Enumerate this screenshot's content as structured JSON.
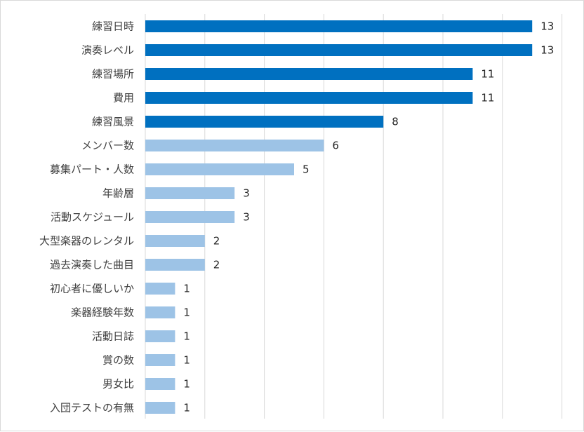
{
  "chart_data": {
    "type": "bar",
    "orientation": "horizontal",
    "categories": [
      "練習日時",
      "演奏レベル",
      "練習場所",
      "費用",
      "練習風景",
      "メンバー数",
      "募集パート・人数",
      "年齢層",
      "活動スケジュール",
      "大型楽器のレンタル",
      "過去演奏した曲目",
      "初心者に優しいか",
      "楽器経験年数",
      "活動日誌",
      "賞の数",
      "男女比",
      "入団テストの有無"
    ],
    "values": [
      13,
      13,
      11,
      11,
      8,
      6,
      5,
      3,
      3,
      2,
      2,
      1,
      1,
      1,
      1,
      1,
      1
    ],
    "highlighted_top_count": 5,
    "colors": {
      "highlight": "#0070c0",
      "normal": "#9dc3e6",
      "grid": "#d9d9d9",
      "category_text": "#404040",
      "value_text": "#262626"
    },
    "xlim": [
      0,
      14
    ],
    "grid": true,
    "data_labels": true,
    "title": "",
    "xlabel": "",
    "ylabel": ""
  }
}
